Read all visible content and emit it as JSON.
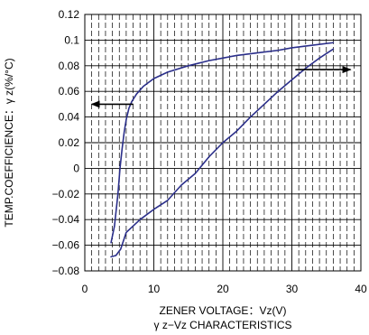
{
  "chart_data": {
    "type": "line",
    "title": "γ z−Vz CHARACTERISTICS",
    "xlabel": "ZENER VOLTAGE：Vz(V)",
    "ylabel": "TEMP.COEFFICIENCE：γ z(%/°C)",
    "xlim": [
      0,
      40
    ],
    "ylim": [
      -0.08,
      0.12
    ],
    "x_ticks": [
      0,
      10,
      20,
      30,
      40
    ],
    "x_tick_labels": [
      "0",
      "10",
      "20",
      "30",
      "40"
    ],
    "y_ticks": [
      -0.08,
      -0.06,
      -0.04,
      -0.02,
      0,
      0.02,
      0.04,
      0.06,
      0.08,
      0.1,
      0.12
    ],
    "y_tick_labels": [
      "−0.08",
      "−0.06",
      "−0.04",
      "−0.02",
      "0",
      "0.02",
      "0.04",
      "0.06",
      "0.08",
      "0.1",
      "0.12"
    ],
    "grid": true,
    "minor_x_step": 1,
    "series_color": "#2b2f8a",
    "series": [
      {
        "x": [
          3.8,
          4.3,
          4.8,
          5.1,
          5.4,
          5.7,
          6.0,
          6.4,
          6.8,
          7.5,
          8.5,
          10,
          12,
          15,
          18,
          20,
          22,
          25,
          28,
          30,
          33,
          36
        ],
        "y": [
          -0.058,
          -0.045,
          -0.02,
          0.0,
          0.015,
          0.028,
          0.038,
          0.047,
          0.052,
          0.058,
          0.064,
          0.07,
          0.075,
          0.08,
          0.084,
          0.086,
          0.088,
          0.09,
          0.092,
          0.094,
          0.096,
          0.098
        ]
      },
      {
        "x": [
          3.8,
          4.5,
          5.2,
          6.0,
          7.0,
          8.0,
          10,
          12,
          14,
          16,
          18,
          20,
          22,
          24,
          26,
          28,
          30,
          32,
          34,
          36
        ],
        "y": [
          -0.069,
          -0.068,
          -0.063,
          -0.05,
          -0.045,
          -0.04,
          -0.032,
          -0.025,
          -0.013,
          -0.004,
          0.009,
          0.02,
          0.029,
          0.04,
          0.05,
          0.06,
          0.069,
          0.078,
          0.086,
          0.093
        ]
      }
    ],
    "annotations": [
      {
        "type": "arrow",
        "direction": "left",
        "x_from": 7.0,
        "x_to": 1.0,
        "y": 0.05,
        "series_index": 0
      },
      {
        "type": "arrow",
        "direction": "right",
        "x_from": 30.5,
        "x_to": 38.5,
        "y": 0.077,
        "series_index": 1
      }
    ]
  }
}
